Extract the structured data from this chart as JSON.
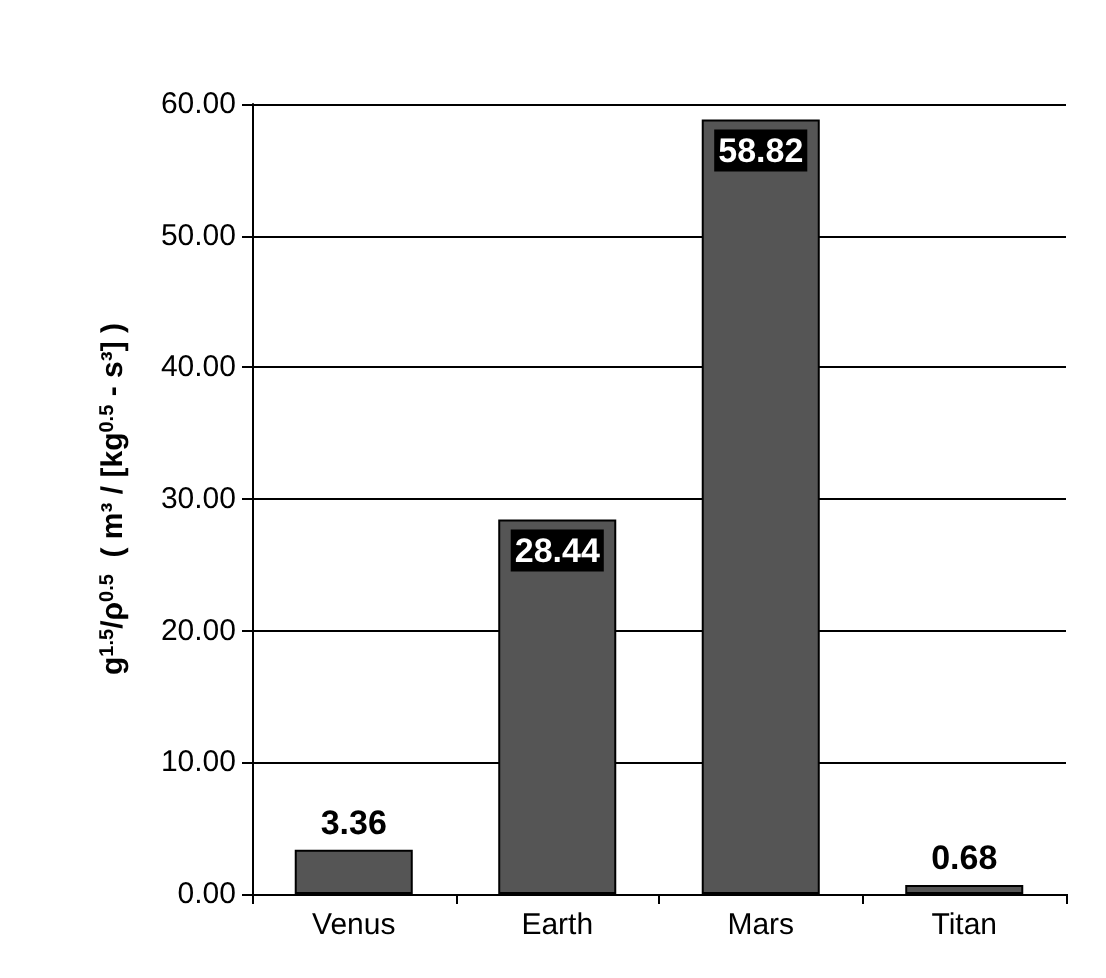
{
  "chart_data": {
    "type": "bar",
    "ylabel": "g$^{1.5}$/ρ$^{0.5}$  ( m³ / [kg$^{0.5}$ - s³] )",
    "categories": [
      "Venus",
      "Earth",
      "Mars",
      "Titan"
    ],
    "values": [
      3.36,
      28.44,
      58.82,
      0.68
    ],
    "color": "#555555",
    "ylim": [
      0,
      60
    ],
    "yticks": [
      {
        "value": 0,
        "label": "0.00"
      },
      {
        "value": 10,
        "label": "10.00"
      },
      {
        "value": 20,
        "label": "20.00"
      },
      {
        "value": 30,
        "label": "30.00"
      },
      {
        "value": 40,
        "label": "40.00"
      },
      {
        "value": 50,
        "label": "50.00"
      },
      {
        "value": 60,
        "label": "60.00"
      }
    ],
    "grid": "y",
    "data_labels": true
  }
}
